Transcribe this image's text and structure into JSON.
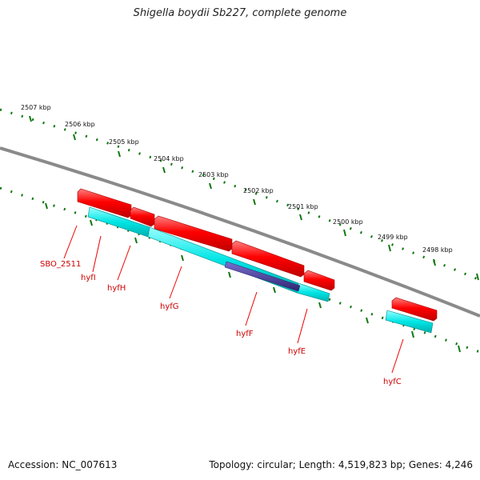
{
  "title": "Shigella boydii Sb227, complete genome",
  "footer": {
    "accession": "Accession: NC_007613",
    "topology": "Topology: circular; Length: 4,519,823 bp; Genes: 4,246"
  },
  "colors": {
    "backbone": "#8a8a8a",
    "ticks": "#117711",
    "cds_forward": "#ff0000",
    "gene_track": "#00e5e5",
    "other_feature": "#4a3f9a",
    "label": "#cc0000"
  },
  "kbp_ticks": [
    "2507 kbp",
    "2506 kbp",
    "2505 kbp",
    "2504 kbp",
    "2503 kbp",
    "2502 kbp",
    "2501 kbp",
    "2500 kbp",
    "2499 kbp",
    "2498 kbp"
  ],
  "genes": [
    "SBO_2511",
    "hyfI",
    "hyfH",
    "hyfG",
    "hyfF",
    "hyfE",
    "hyfC"
  ]
}
